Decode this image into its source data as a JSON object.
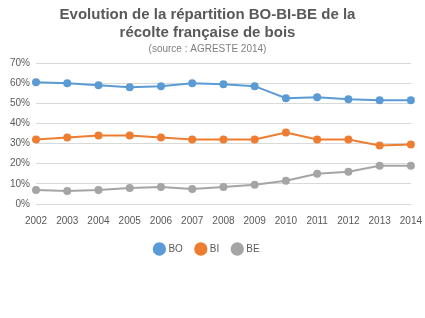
{
  "chart_data": {
    "type": "line",
    "title": "Evolution de la répartition BO-BI-BE de la récolte française de bois",
    "subtitle": "(source : AGRESTE 2014)",
    "categories": [
      "2002",
      "2003",
      "2004",
      "2005",
      "2006",
      "2007",
      "2008",
      "2009",
      "2010",
      "2011",
      "2012",
      "2013",
      "2014"
    ],
    "series": [
      {
        "name": "BO",
        "color": "#5b9bd5",
        "marker": "circle",
        "line_style": "solid",
        "values": [
          60.5,
          60,
          59,
          58,
          58.5,
          60,
          59.5,
          58.5,
          52.5,
          53,
          52,
          51.5,
          51.5
        ]
      },
      {
        "name": "BI",
        "color": "#ed7d31",
        "marker": "circle",
        "line_style": "solid",
        "values": [
          32,
          33,
          34,
          34,
          33,
          32,
          32,
          32,
          35.5,
          32,
          32,
          29,
          29.5
        ]
      },
      {
        "name": "BE",
        "color": "#a5a5a5",
        "marker": "circle",
        "line_style": "solid",
        "values": [
          7,
          6.5,
          7,
          8,
          8.5,
          7.5,
          8.5,
          9.5,
          11.5,
          15,
          16,
          19,
          19
        ]
      }
    ],
    "ylim": [
      0,
      70
    ],
    "yticks": [
      {
        "value": 0,
        "label": "0%"
      },
      {
        "value": 10,
        "label": "10%"
      },
      {
        "value": 20,
        "label": "20%"
      },
      {
        "value": 30,
        "label": "30%"
      },
      {
        "value": 40,
        "label": "40%"
      },
      {
        "value": 50,
        "label": "50%"
      },
      {
        "value": 60,
        "label": "60%"
      },
      {
        "value": 70,
        "label": "70%"
      }
    ],
    "grid": true,
    "legend": "bottom"
  }
}
